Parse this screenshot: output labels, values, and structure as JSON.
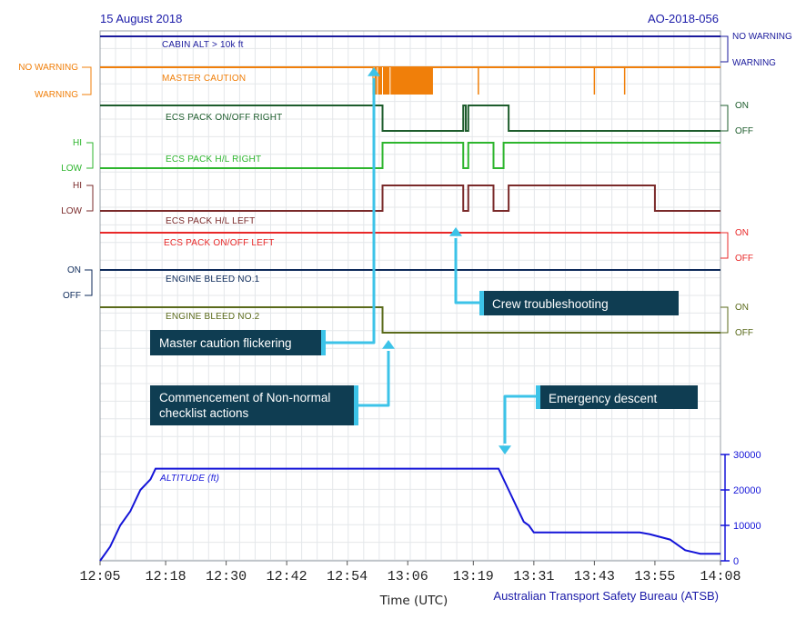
{
  "header": {
    "date": "15 August 2018",
    "report_id": "AO-2018-056"
  },
  "footer": {
    "xlabel": "Time (UTC)",
    "source": "Australian Transport Safety Bureau (ATSB)"
  },
  "callouts": {
    "crew": "Crew troubleshooting",
    "master": "Master caution flickering",
    "commence_line1": "Commencement of Non-normal",
    "commence_line2": "checklist actions",
    "emergency": "Emergency descent"
  },
  "state_labels": {
    "no_warning": "NO WARNING",
    "warning": "WARNING",
    "hi": "HI",
    "low": "LOW",
    "on": "ON",
    "off": "OFF"
  },
  "chart_data": {
    "type": "line",
    "x_ticks": [
      "12:05",
      "12:18",
      "12:30",
      "12:42",
      "12:54",
      "13:06",
      "13:19",
      "13:31",
      "13:43",
      "13:55",
      "14:08"
    ],
    "xlim": [
      "12:05",
      "14:08"
    ],
    "grid": true,
    "colors": {
      "cabin": "#1a1a9c",
      "master": "#f07f0a",
      "ecs_right_onoff": "#1d5c2c",
      "ecs_right_hl": "#2db52d",
      "ecs_left_hl": "#7a2a2a",
      "ecs_left_onoff": "#e82828",
      "bleed1": "#0d2a5a",
      "bleed2": "#5a6a1a",
      "altitude": "#1414d8",
      "callout": "#0f3d52",
      "arrow": "#3cc3e8"
    },
    "discrete_series": [
      {
        "name": "CABIN ALT > 10k ft",
        "states": [
          "NO WARNING",
          "WARNING"
        ],
        "steps": []
      },
      {
        "name": "MASTER CAUTION",
        "states": [
          "NO WARNING",
          "WARNING"
        ],
        "note": "dense flicker to WARNING approx. 12:59-13:11; brief WARNING at 13:20, 13:43, 13:49"
      },
      {
        "name": "ECS PACK ON/OFF RIGHT",
        "states": [
          "ON",
          "OFF"
        ],
        "steps": [
          [
            "12:05",
            "ON"
          ],
          [
            "13:01",
            "OFF"
          ],
          [
            "13:17",
            "ON"
          ],
          [
            "13:17.5",
            "OFF"
          ],
          [
            "13:18",
            "ON"
          ],
          [
            "13:26",
            "OFF"
          ],
          [
            "14:08",
            "OFF"
          ]
        ]
      },
      {
        "name": "ECS PACK H/L RIGHT",
        "states": [
          "HI",
          "LOW"
        ],
        "steps": [
          [
            "12:05",
            "LOW"
          ],
          [
            "13:01",
            "HI"
          ],
          [
            "13:17",
            "LOW"
          ],
          [
            "13:18",
            "HI"
          ],
          [
            "13:23",
            "LOW"
          ],
          [
            "13:25",
            "HI"
          ],
          [
            "14:08",
            "HI"
          ]
        ]
      },
      {
        "name": "ECS PACK H/L LEFT",
        "states": [
          "HI",
          "LOW"
        ],
        "steps": [
          [
            "12:05",
            "LOW"
          ],
          [
            "13:01",
            "HI"
          ],
          [
            "13:17",
            "LOW"
          ],
          [
            "13:18",
            "HI"
          ],
          [
            "13:23",
            "LOW"
          ],
          [
            "13:26",
            "HI"
          ],
          [
            "13:55",
            "LOW"
          ],
          [
            "14:08",
            "LOW"
          ]
        ]
      },
      {
        "name": "ECS PACK ON/OFF LEFT",
        "states": [
          "ON",
          "OFF"
        ],
        "steps": [
          [
            "12:05",
            "ON"
          ],
          [
            "14:08",
            "ON"
          ]
        ]
      },
      {
        "name": "ENGINE BLEED NO.1",
        "states": [
          "ON",
          "OFF"
        ],
        "steps": [
          [
            "12:05",
            "ON"
          ],
          [
            "14:08",
            "ON"
          ]
        ]
      },
      {
        "name": "ENGINE BLEED NO.2",
        "states": [
          "ON",
          "OFF"
        ],
        "steps": [
          [
            "12:05",
            "ON"
          ],
          [
            "13:01",
            "OFF"
          ],
          [
            "14:08",
            "OFF"
          ]
        ]
      }
    ],
    "altitude_series": {
      "name": "ALTITUDE (ft)",
      "y_ticks": [
        0,
        10000,
        20000,
        30000
      ],
      "ylim": [
        0,
        30000
      ],
      "points": [
        [
          "12:05",
          0
        ],
        [
          "12:07",
          4000
        ],
        [
          "12:09",
          10000
        ],
        [
          "12:11",
          14000
        ],
        [
          "12:13",
          20000
        ],
        [
          "12:15",
          23000
        ],
        [
          "12:16",
          26000
        ],
        [
          "13:24",
          26000
        ],
        [
          "13:26",
          20000
        ],
        [
          "13:28",
          14000
        ],
        [
          "13:29",
          11000
        ],
        [
          "13:30",
          10000
        ],
        [
          "13:31",
          8000
        ],
        [
          "13:52",
          8000
        ],
        [
          "13:54",
          7500
        ],
        [
          "13:58",
          6000
        ],
        [
          "14:01",
          3000
        ],
        [
          "14:04",
          2000
        ],
        [
          "14:08",
          2000
        ]
      ]
    }
  }
}
